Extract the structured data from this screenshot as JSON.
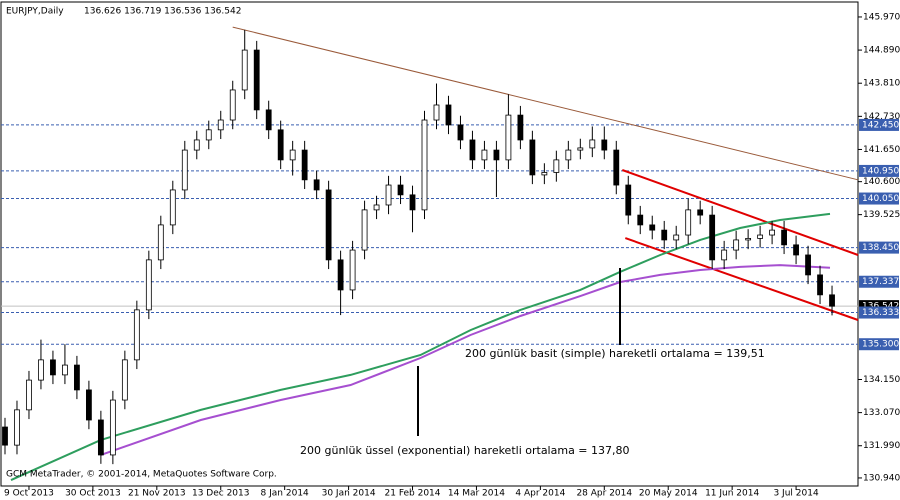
{
  "chart_data": {
    "type": "candlestick",
    "title": "EURJPY,Daily",
    "subtitle": "136.626 136.719 136.536 136.542",
    "footer": "GCM MetaTrader, © 2001-2014, MetaQuotes Software Corp.",
    "x": [
      1,
      4,
      7,
      10,
      13,
      16,
      19,
      22,
      25,
      28,
      31,
      34,
      37,
      40,
      43,
      46,
      49,
      52,
      55,
      58,
      61,
      64,
      67,
      70,
      73,
      76,
      79,
      82,
      85,
      88,
      91,
      94,
      97,
      100,
      103,
      106,
      109,
      112,
      115,
      118,
      121,
      124,
      127,
      130,
      133,
      136,
      139,
      142,
      145,
      148,
      151,
      154,
      157,
      160,
      163,
      166,
      169,
      172,
      175,
      178,
      181,
      184,
      187,
      190,
      193,
      196,
      199,
      202,
      205,
      208
    ],
    "open": [
      132.6,
      132.01,
      133.16,
      134.13,
      134.79,
      134.3,
      134.62,
      133.81,
      132.83,
      131.69,
      133.48,
      134.79,
      136.42,
      138.05,
      139.19,
      140.33,
      141.63,
      141.96,
      142.29,
      142.61,
      143.59,
      144.89,
      142.94,
      142.29,
      141.31,
      141.63,
      140.66,
      140.33,
      138.05,
      137.07,
      138.37,
      139.68,
      139.84,
      140.49,
      140.17,
      139.68,
      142.61,
      143.1,
      142.45,
      141.96,
      141.31,
      141.63,
      141.31,
      142.77,
      141.96,
      140.82,
      140.9,
      141.31,
      141.63,
      141.7,
      141.96,
      141.63,
      140.49,
      139.51,
      139.19,
      139.02,
      138.7,
      138.86,
      139.68,
      139.51,
      138.05,
      138.37,
      138.7,
      138.75,
      138.86,
      139.02,
      138.54,
      138.21,
      137.56,
      136.91
    ],
    "high": [
      132.9,
      133.46,
      134.43,
      135.45,
      135.09,
      135.3,
      134.92,
      134.11,
      133.13,
      133.78,
      135.09,
      136.72,
      138.35,
      139.49,
      140.63,
      141.93,
      142.26,
      142.59,
      142.91,
      143.89,
      145.55,
      145.19,
      143.24,
      142.59,
      141.93,
      141.93,
      140.96,
      140.63,
      138.35,
      138.67,
      139.98,
      140.14,
      140.79,
      140.79,
      140.47,
      142.91,
      143.8,
      143.4,
      142.75,
      142.26,
      141.93,
      141.93,
      143.45,
      143.07,
      142.26,
      141.2,
      141.61,
      141.93,
      142.0,
      142.4,
      142.4,
      141.93,
      140.79,
      139.81,
      139.49,
      139.32,
      139.16,
      140.05,
      139.98,
      139.81,
      138.67,
      139.0,
      139.05,
      139.16,
      139.32,
      139.32,
      138.84,
      138.51,
      137.86,
      137.21
    ],
    "low": [
      131.71,
      131.71,
      132.86,
      133.83,
      134.0,
      134.0,
      133.51,
      132.53,
      131.4,
      131.39,
      133.18,
      134.49,
      136.12,
      137.75,
      138.89,
      140.03,
      141.33,
      141.66,
      141.99,
      142.31,
      143.29,
      142.64,
      141.99,
      141.01,
      140.8,
      140.36,
      140.03,
      137.75,
      136.25,
      136.77,
      138.07,
      139.38,
      139.54,
      139.87,
      138.95,
      139.38,
      142.31,
      142.15,
      141.66,
      141.01,
      141.01,
      140.1,
      141.01,
      141.66,
      140.52,
      140.52,
      140.6,
      141.01,
      141.33,
      141.4,
      141.33,
      140.19,
      139.21,
      138.89,
      138.72,
      138.4,
      138.4,
      138.56,
      139.21,
      137.75,
      137.75,
      138.07,
      138.4,
      138.45,
      138.56,
      138.24,
      137.91,
      137.26,
      136.61,
      136.24
    ],
    "close": [
      132.01,
      133.16,
      134.13,
      134.79,
      134.3,
      134.62,
      133.81,
      132.83,
      131.69,
      133.48,
      134.79,
      136.42,
      138.05,
      139.19,
      140.33,
      141.63,
      141.96,
      142.29,
      142.61,
      143.59,
      144.89,
      142.94,
      142.29,
      141.31,
      141.63,
      140.66,
      140.33,
      138.05,
      137.07,
      138.37,
      139.68,
      139.84,
      140.49,
      140.17,
      139.68,
      142.61,
      143.1,
      142.45,
      141.96,
      141.31,
      141.63,
      141.31,
      142.77,
      141.96,
      140.82,
      140.9,
      141.31,
      141.63,
      141.7,
      141.96,
      141.63,
      140.49,
      139.51,
      139.19,
      139.02,
      138.7,
      138.86,
      139.68,
      139.51,
      138.05,
      138.37,
      138.7,
      138.75,
      138.86,
      139.02,
      138.54,
      138.21,
      137.56,
      136.91,
      136.54
    ],
    "xlim": [
      0,
      214.5
    ],
    "ylim": [
      130.71,
      146.36
    ],
    "xticks": [
      {
        "value": 7,
        "label": "9 Oct 2013"
      },
      {
        "value": 23,
        "label": "30 Oct 2013"
      },
      {
        "value": 39,
        "label": "21 Nov 2013"
      },
      {
        "value": 55,
        "label": "13 Dec 2013"
      },
      {
        "value": 71,
        "label": "8 Jan 2014"
      },
      {
        "value": 87,
        "label": "30 Jan 2014"
      },
      {
        "value": 103,
        "label": "21 Feb 2014"
      },
      {
        "value": 119,
        "label": "14 Mar 2014"
      },
      {
        "value": 135,
        "label": "4 Apr 2014"
      },
      {
        "value": 151,
        "label": "28 Apr 2014"
      },
      {
        "value": 167,
        "label": "20 May 2014"
      },
      {
        "value": 183,
        "label": "11 Jun 2014"
      },
      {
        "value": 199,
        "label": "3 Jul 2014"
      }
    ],
    "yticks": [
      {
        "value": 145.97,
        "label": "145.970"
      },
      {
        "value": 144.89,
        "label": "144.890"
      },
      {
        "value": 143.81,
        "label": "143.810"
      },
      {
        "value": 142.73,
        "label": "142.730"
      },
      {
        "value": 141.65,
        "label": "141.650"
      },
      {
        "value": 140.6,
        "label": "140.600"
      },
      {
        "value": 139.525,
        "label": "139.525"
      },
      {
        "value": 134.15,
        "label": "134.150"
      },
      {
        "value": 133.07,
        "label": "133.070"
      },
      {
        "value": 131.99,
        "label": "131.990"
      },
      {
        "value": 130.94,
        "label": "130.940"
      }
    ],
    "levels": [
      {
        "value": 142.45,
        "label": "142.450"
      },
      {
        "value": 140.95,
        "label": "140.950"
      },
      {
        "value": 140.05,
        "label": "140.050"
      },
      {
        "value": 138.45,
        "label": "138.450"
      },
      {
        "value": 137.337,
        "label": "137.337"
      },
      {
        "value": 136.333,
        "label": "136.333"
      },
      {
        "value": 135.3,
        "label": "135.300"
      }
    ],
    "level_color": "#3a5fb0",
    "last_price": {
      "value": 136.542,
      "label": "136.542"
    },
    "overlays": [
      {
        "color": "#2e9e5e",
        "x": [
          2.5,
          25,
          50,
          70,
          87.5,
          105,
          117.5,
          130,
          145,
          155,
          165,
          175,
          185,
          195,
          207.5
        ],
        "values": [
          130.87,
          132.18,
          133.16,
          133.81,
          134.3,
          134.95,
          135.76,
          136.42,
          137.07,
          137.66,
          138.21,
          138.7,
          139.09,
          139.35,
          139.55
        ]
      },
      {
        "color": "#a64fd0",
        "x": [
          25,
          50,
          70,
          87.5,
          105,
          117.5,
          130,
          145,
          155,
          165,
          175,
          185,
          195,
          207.5
        ],
        "values": [
          131.69,
          132.83,
          133.48,
          133.97,
          134.85,
          135.6,
          136.22,
          136.87,
          137.33,
          137.56,
          137.72,
          137.82,
          137.88,
          137.79
        ]
      }
    ],
    "trendlines": [
      {
        "color": "#9a5a3a",
        "x": [
          58,
          214.5
        ],
        "values": [
          145.64,
          140.66
        ]
      },
      {
        "color": "#e00000",
        "x": [
          155.5,
          214.5
        ],
        "values": [
          140.98,
          138.21
        ]
      },
      {
        "color": "#e00000",
        "x": [
          156.25,
          214.5
        ],
        "values": [
          138.76,
          136.09
        ]
      }
    ],
    "annotations": [
      {
        "text": "200 günlük basit (simple) hareketli ortalama = 139,51"
      },
      {
        "text": "200 günlük üssel (exponential) hareketli ortalama = 137,80"
      }
    ]
  }
}
